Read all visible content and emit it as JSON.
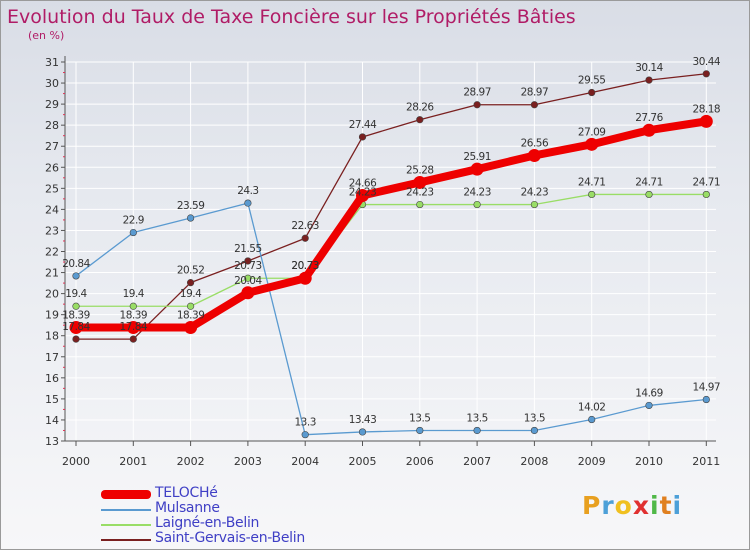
{
  "header": {
    "title": "Evolution du Taux de Taxe Foncière sur les Propriétés Bâties",
    "unit": "(en %)"
  },
  "chart_data": {
    "type": "line",
    "title": "Evolution du Taux de Taxe Foncière sur les Propriétés Bâties",
    "ylabel": "(en %)",
    "xlabel": "",
    "categories": [
      "2000",
      "2001",
      "2002",
      "2003",
      "2004",
      "2005",
      "2006",
      "2007",
      "2008",
      "2009",
      "2010",
      "2011"
    ],
    "ylim": [
      13,
      31
    ],
    "yticks": [
      13,
      14,
      15,
      16,
      17,
      18,
      19,
      20,
      21,
      22,
      23,
      24,
      25,
      26,
      27,
      28,
      29,
      30,
      31
    ],
    "grid": true,
    "legend_position": "bottom-left",
    "series": [
      {
        "name": "TELOCHé",
        "color": "#ee0000",
        "values": [
          18.39,
          18.39,
          18.39,
          20.04,
          20.73,
          24.66,
          25.28,
          25.91,
          26.56,
          27.09,
          27.76,
          28.18
        ],
        "labels": [
          "18.39",
          "18.39",
          "18.39",
          "20.04",
          "20.73",
          "24.66",
          "25.28",
          "25.91",
          "26.56",
          "27.09",
          "27.76",
          "28.18"
        ]
      },
      {
        "name": "Mulsanne",
        "color": "#5a9ad0",
        "values": [
          20.84,
          22.9,
          23.59,
          24.3,
          13.3,
          13.43,
          13.5,
          13.5,
          13.5,
          14.02,
          14.69,
          14.97
        ],
        "labels": [
          "20.84",
          "22.9",
          "23.59",
          "24.3",
          "13.3",
          "13.43",
          "13.5",
          "13.5",
          "13.5",
          "14.02",
          "14.69",
          "14.97"
        ]
      },
      {
        "name": "Laigné-en-Belin",
        "color": "#99dd66",
        "values": [
          19.4,
          19.4,
          19.4,
          20.73,
          20.73,
          24.23,
          24.23,
          24.23,
          24.23,
          24.71,
          24.71,
          24.71
        ],
        "labels": [
          "19.4",
          "19.4",
          "19.4",
          "20.73",
          "20.73",
          "24.23",
          "24.23",
          "24.23",
          "24.23",
          "24.71",
          "24.71",
          "24.71"
        ]
      },
      {
        "name": "Saint-Gervais-en-Belin",
        "color": "#7a2020",
        "values": [
          17.84,
          17.84,
          20.52,
          21.55,
          22.63,
          27.44,
          28.26,
          28.97,
          28.97,
          29.55,
          30.14,
          30.44
        ],
        "labels": [
          "17.84",
          "17.84",
          "20.52",
          "21.55",
          "22.63",
          "27.44",
          "28.26",
          "28.97",
          "28.97",
          "29.55",
          "30.14",
          "30.44"
        ]
      }
    ]
  },
  "legend": {
    "items": [
      {
        "label": "TELOCHé",
        "color": "#ee0000"
      },
      {
        "label": "Mulsanne",
        "color": "#5a9ad0"
      },
      {
        "label": "Laigné-en-Belin",
        "color": "#99dd66"
      },
      {
        "label": "Saint-Gervais-en-Belin",
        "color": "#7a2020"
      }
    ]
  },
  "logo": {
    "letters": [
      "P",
      "r",
      "o",
      "x",
      "i",
      "t",
      "i"
    ],
    "colors": [
      "#e8a020",
      "#4da0d8",
      "#f0c020",
      "#e03030",
      "#50b848",
      "#e08020",
      "#4da0d8"
    ]
  }
}
